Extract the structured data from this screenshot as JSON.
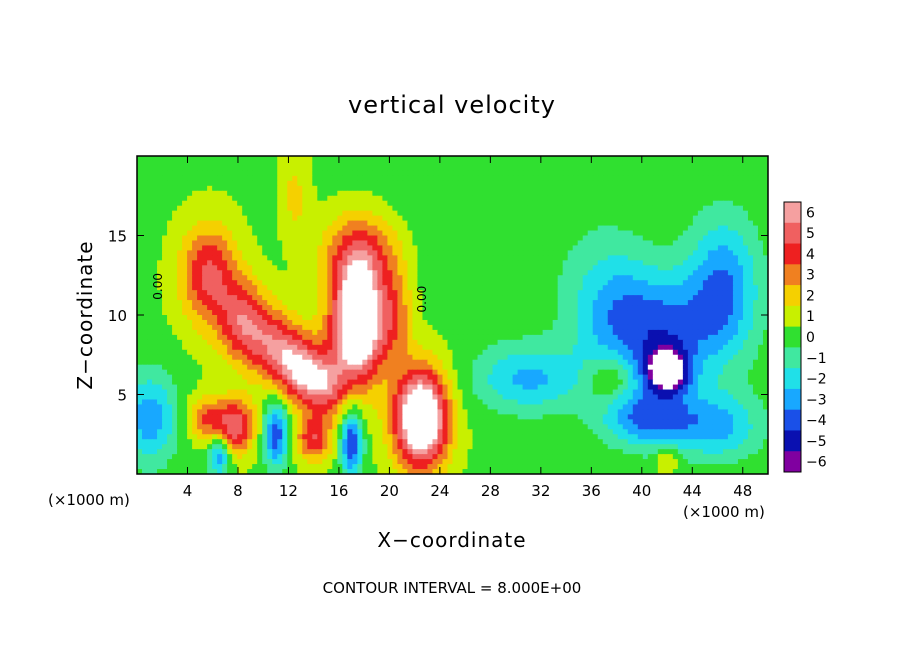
{
  "chart_data": {
    "type": "heatmap",
    "title": "vertical velocity",
    "xlabel": "X−coordinate",
    "ylabel": "Z−coordinate",
    "x_units_left": "(×1000 m)",
    "x_units_right": "(×1000 m)",
    "xlim": [
      0,
      50
    ],
    "ylim": [
      0,
      20
    ],
    "x_ticks": [
      "4",
      "8",
      "12",
      "16",
      "20",
      "24",
      "28",
      "32",
      "36",
      "40",
      "44",
      "48"
    ],
    "x_tick_values": [
      4,
      8,
      12,
      16,
      20,
      24,
      28,
      32,
      36,
      40,
      44,
      48
    ],
    "y_ticks": [
      "5",
      "10",
      "15"
    ],
    "y_tick_values": [
      5,
      10,
      15
    ],
    "colorbar_labels": [
      "6",
      "5",
      "4",
      "3",
      "2",
      "1",
      "0",
      "−1",
      "−2",
      "−3",
      "−4",
      "−5",
      "−6"
    ],
    "colorbar_values": [
      6,
      5,
      4,
      3,
      2,
      1,
      0,
      -1,
      -2,
      -3,
      -4,
      -5,
      -6
    ],
    "colorbar_colors": [
      "#f5a0a0",
      "#f06060",
      "#ee2020",
      "#f08020",
      "#f5d000",
      "#c8f000",
      "#30e030",
      "#40e8a0",
      "#20e0e8",
      "#18a8ff",
      "#1a50e8",
      "#0a10b0",
      "#8000a0"
    ],
    "contour_labels": [
      "0.00",
      "0.00"
    ],
    "contour_label_positions": [
      [
        2.0,
        11.8
      ],
      [
        22.9,
        11.0
      ]
    ],
    "footer": "CONTOUR INTERVAL = 8.000E+00",
    "features": [
      {
        "x": 5.7,
        "z": 12.5,
        "sx": 1.6,
        "sz": 2.2,
        "w": 4.5
      },
      {
        "x": 8.5,
        "z": 9.5,
        "sx": 1.4,
        "sz": 1.8,
        "w": 4.5
      },
      {
        "x": 11.0,
        "z": 8.0,
        "sx": 1.4,
        "sz": 1.6,
        "w": 4.0
      },
      {
        "x": 13.0,
        "z": 6.5,
        "sx": 1.3,
        "sz": 1.5,
        "w": 5.0
      },
      {
        "x": 15.0,
        "z": 5.5,
        "sx": 1.2,
        "sz": 1.4,
        "w": 4.0
      },
      {
        "x": 7.8,
        "z": 3.0,
        "sx": 1.1,
        "sz": 1.2,
        "w": 5.0
      },
      {
        "x": 5.5,
        "z": 3.5,
        "sx": 1.0,
        "sz": 1.0,
        "w": 3.0
      },
      {
        "x": 14.0,
        "z": 2.2,
        "sx": 1.0,
        "sz": 1.0,
        "w": 4.0
      },
      {
        "x": 17.5,
        "z": 9.5,
        "sx": 1.5,
        "sz": 2.6,
        "w": 9.0
      },
      {
        "x": 17.8,
        "z": 14.0,
        "sx": 2.2,
        "sz": 1.8,
        "w": 3.5
      },
      {
        "x": 22.5,
        "z": 3.5,
        "sx": 1.5,
        "sz": 2.2,
        "w": 9.0
      },
      {
        "x": 20.5,
        "z": 10.0,
        "sx": 1.0,
        "sz": 2.0,
        "w": 2.5
      },
      {
        "x": 12.5,
        "z": 17.5,
        "sx": 0.8,
        "sz": 2.0,
        "w": 1.5
      },
      {
        "x": 42.0,
        "z": 6.5,
        "sx": 1.2,
        "sz": 1.0,
        "w": -6.5
      },
      {
        "x": 41.5,
        "z": 9.0,
        "sx": 3.5,
        "sz": 2.5,
        "w": -4.0
      },
      {
        "x": 46.5,
        "z": 12.0,
        "sx": 2.0,
        "sz": 3.0,
        "w": -3.5
      },
      {
        "x": 37.5,
        "z": 11.0,
        "sx": 2.5,
        "sz": 3.0,
        "w": -2.0
      },
      {
        "x": 31.0,
        "z": 6.0,
        "sx": 3.0,
        "sz": 1.5,
        "w": -3.0
      },
      {
        "x": 40.5,
        "z": 3.5,
        "sx": 2.5,
        "sz": 1.3,
        "w": -4.0
      },
      {
        "x": 46.0,
        "z": 3.0,
        "sx": 2.5,
        "sz": 1.5,
        "w": -3.0
      },
      {
        "x": 1.0,
        "z": 3.5,
        "sx": 1.5,
        "sz": 2.0,
        "w": -3.5
      },
      {
        "x": 6.5,
        "z": 1.2,
        "sx": 0.6,
        "sz": 0.9,
        "w": -4.0
      },
      {
        "x": 11.0,
        "z": 2.5,
        "sx": 0.7,
        "sz": 1.5,
        "w": -4.5
      },
      {
        "x": 17.0,
        "z": 2.0,
        "sx": 0.6,
        "sz": 1.5,
        "w": -5.0
      },
      {
        "x": 37.5,
        "z": 6.0,
        "sx": 1.2,
        "sz": 1.0,
        "w": 2.0
      },
      {
        "x": 26.0,
        "z": 16.0,
        "sx": 6.0,
        "sz": 4.0,
        "w": -0.6
      },
      {
        "x": 42.0,
        "z": 1.0,
        "sx": 0.6,
        "sz": 0.6,
        "w": 2.0
      }
    ]
  }
}
